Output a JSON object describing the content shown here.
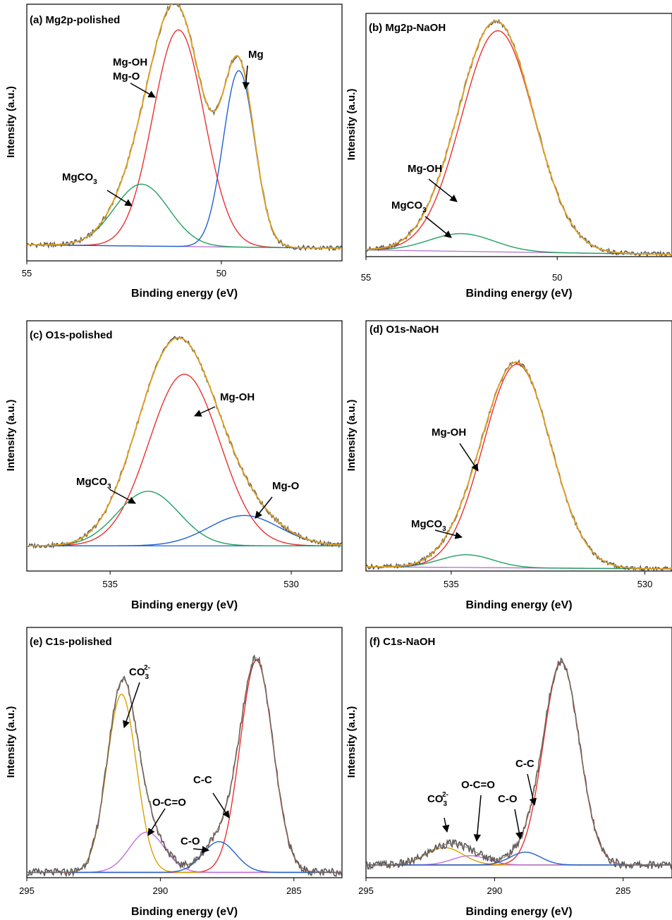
{
  "figure": {
    "panels": [
      {
        "id": "a",
        "title": "(a) Mg2p-polished",
        "xlabel": "Binding energy (eV)",
        "ylabel": "Intensity (a.u.)"
      },
      {
        "id": "b",
        "title": "(b) Mg2p-NaOH",
        "xlabel": "Binding energy (eV)",
        "ylabel": "Intensity (a.u.)"
      },
      {
        "id": "c",
        "title": "(c) O1s-polished",
        "xlabel": "Binding energy (eV)",
        "ylabel": "Intensity (a.u.)"
      },
      {
        "id": "d",
        "title": "(d) O1s-NaOH",
        "xlabel": "Binding energy (eV)",
        "ylabel": "Intensity (a.u.)"
      },
      {
        "id": "e",
        "title": "(e) C1s-polished",
        "xlabel": "Binding energy (eV)",
        "ylabel": "Intensity (a.u.)"
      },
      {
        "id": "f",
        "title": "(f) C1s-NaOH",
        "xlabel": "Binding energy (eV)",
        "ylabel": "Intensity (a.u.)"
      }
    ]
  },
  "colors": {
    "raw": "#5a5a5a",
    "envelope": "#e0a020",
    "background": "#b070d0",
    "red": "#e83030",
    "green": "#20a060",
    "blue": "#2060d0",
    "orange": "#d8a000",
    "purple": "#c070e0",
    "carbonate_c1s": "#d8a000"
  },
  "chart_data": [
    {
      "panel": "a",
      "type": "line",
      "title": "(a) Mg2p-polished",
      "xlabel": "Binding energy (eV)",
      "ylabel": "Intensity (a.u.)",
      "xlim": [
        55,
        46.9
      ],
      "x_reversed": true,
      "xticks": [
        55,
        50
      ],
      "ylim": [
        0,
        1.12
      ],
      "yticks_shown": false,
      "baseline": [
        0.07,
        0.055
      ],
      "baseline_color": "background",
      "components": [
        {
          "label": "Mg-OH / Mg-O",
          "center": 51.1,
          "fwhm": 1.55,
          "height": 0.945,
          "color": "red"
        },
        {
          "label": "MgCO3",
          "center": 52.05,
          "fwhm": 1.65,
          "height": 0.27,
          "color": "green"
        },
        {
          "label": "Mg",
          "center": 49.55,
          "fwhm": 0.95,
          "height": 0.77,
          "color": "blue"
        }
      ],
      "annotations": [
        {
          "lines": [
            "Mg-OH",
            "Mg-O"
          ],
          "point_to": "Mg-OH / Mg-O"
        },
        {
          "lines": [
            "Mg"
          ],
          "point_to": "Mg"
        },
        {
          "lines": [
            "MgCO",
            "3"
          ],
          "point_to": "MgCO3"
        }
      ]
    },
    {
      "panel": "b",
      "type": "line",
      "title": "(b) Mg2p-NaOH",
      "xlabel": "Binding energy (eV)",
      "ylabel": "Intensity (a.u.)",
      "xlim": [
        55,
        47
      ],
      "x_reversed": true,
      "xticks": [
        55,
        50
      ],
      "ylim": [
        0,
        1.1
      ],
      "yticks_shown": false,
      "baseline": [
        0.03,
        0.01
      ],
      "baseline_color": "background",
      "components": [
        {
          "label": "Mg-OH",
          "center": 51.55,
          "fwhm": 2.25,
          "height": 1.0,
          "color": "red"
        },
        {
          "label": "MgCO3",
          "center": 52.5,
          "fwhm": 2.0,
          "height": 0.08,
          "color": "green"
        }
      ],
      "annotations": [
        {
          "lines": [
            "Mg-OH"
          ],
          "point_to": "Mg-OH"
        },
        {
          "lines": [
            "MgCO",
            "3"
          ],
          "point_to": "MgCO3"
        }
      ]
    },
    {
      "panel": "c",
      "type": "line",
      "title": "(c) O1s-polished",
      "xlabel": "Binding energy (eV)",
      "ylabel": "Intensity (a.u.)",
      "xlim": [
        537.3,
        528.6
      ],
      "x_reversed": true,
      "xticks": [
        535,
        530
      ],
      "ylim": [
        -0.12,
        1.12
      ],
      "yticks_shown": false,
      "baseline": [
        0.005,
        0.005
      ],
      "baseline_color": "blue",
      "components": [
        {
          "label": "Mg-OH",
          "center": 532.95,
          "fwhm": 2.3,
          "height": 0.85,
          "color": "red"
        },
        {
          "label": "MgCO3",
          "center": 533.95,
          "fwhm": 2.0,
          "height": 0.27,
          "color": "green"
        },
        {
          "label": "Mg-O",
          "center": 531.3,
          "fwhm": 2.3,
          "height": 0.15,
          "color": "blue"
        }
      ],
      "annotations": [
        {
          "lines": [
            "Mg-OH"
          ],
          "point_to": "Mg-OH"
        },
        {
          "lines": [
            "MgCO",
            "3"
          ],
          "point_to": "MgCO3"
        },
        {
          "lines": [
            "Mg-O"
          ],
          "point_to": "Mg-O"
        }
      ]
    },
    {
      "panel": "d",
      "type": "line",
      "title": "(d) O1s-NaOH",
      "xlabel": "Binding energy (eV)",
      "ylabel": "Intensity (a.u.)",
      "xlim": [
        537.2,
        529.3
      ],
      "x_reversed": true,
      "xticks": [
        535,
        530
      ],
      "ylim": [
        0,
        1.18
      ],
      "yticks_shown": false,
      "baseline": [
        0.02,
        0.01
      ],
      "baseline_color": "background",
      "components": [
        {
          "label": "Mg-OH",
          "center": 533.3,
          "fwhm": 2.05,
          "height": 0.96,
          "color": "red"
        },
        {
          "label": "MgCO3",
          "center": 534.6,
          "fwhm": 1.6,
          "height": 0.06,
          "color": "green"
        }
      ],
      "annotations": [
        {
          "lines": [
            "Mg-OH"
          ],
          "point_to": "Mg-OH"
        },
        {
          "lines": [
            "MgCO",
            "3"
          ],
          "point_to": "MgCO3"
        }
      ]
    },
    {
      "panel": "e",
      "type": "line",
      "title": "(e) C1s-polished",
      "xlabel": "Binding energy (eV)",
      "ylabel": "Intensity (a.u.)",
      "xlim": [
        295,
        283.2
      ],
      "x_reversed": true,
      "xticks": [
        295,
        290,
        285
      ],
      "ylim": [
        0,
        1.18
      ],
      "yticks_shown": false,
      "baseline": [
        0.025,
        0.025
      ],
      "baseline_color": "blue",
      "components": [
        {
          "label": "C-C",
          "center": 286.4,
          "fwhm": 1.45,
          "height": 1.0,
          "color": "red"
        },
        {
          "label": "CO3 2-",
          "center": 291.45,
          "fwhm": 1.3,
          "height": 0.84,
          "color": "orange"
        },
        {
          "label": "O-C=O",
          "center": 290.5,
          "fwhm": 1.55,
          "height": 0.19,
          "color": "purple"
        },
        {
          "label": "C-O",
          "center": 287.8,
          "fwhm": 1.45,
          "height": 0.145,
          "color": "blue"
        }
      ],
      "annotations": [
        {
          "lines": [
            "CO",
            "3",
            "2-"
          ],
          "point_to": "CO3 2-"
        },
        {
          "lines": [
            "O-C=O"
          ],
          "point_to": "O-C=O"
        },
        {
          "lines": [
            "C-O"
          ],
          "point_to": "C-O"
        },
        {
          "lines": [
            "C-C"
          ],
          "point_to": "C-C"
        }
      ]
    },
    {
      "panel": "f",
      "type": "line",
      "title": "(f) C1s-NaOH",
      "xlabel": "Binding energy (eV)",
      "ylabel": "Intensity (a.u.)",
      "xlim": [
        295,
        283.1
      ],
      "x_reversed": true,
      "xticks": [
        295,
        290,
        285
      ],
      "ylim": [
        0,
        1.08
      ],
      "yticks_shown": false,
      "baseline": [
        0.055,
        0.055
      ],
      "baseline_color": "green",
      "components": [
        {
          "label": "C-C",
          "center": 287.4,
          "fwhm": 1.65,
          "height": 0.875,
          "color": "red"
        },
        {
          "label": "CO3 2-",
          "center": 291.95,
          "fwhm": 1.7,
          "height": 0.075,
          "color": "orange"
        },
        {
          "label": "O-C=O",
          "center": 290.95,
          "fwhm": 1.6,
          "height": 0.04,
          "color": "purple"
        },
        {
          "label": "C-O",
          "center": 288.8,
          "fwhm": 1.4,
          "height": 0.055,
          "color": "blue"
        }
      ],
      "annotations": [
        {
          "lines": [
            "CO",
            "3",
            "2-"
          ],
          "point_to": "CO3 2-"
        },
        {
          "lines": [
            "O-C=O"
          ],
          "point_to": "O-C=O"
        },
        {
          "lines": [
            "C-O"
          ],
          "point_to": "C-O"
        },
        {
          "lines": [
            "C-C"
          ],
          "point_to": "C-C"
        }
      ]
    }
  ]
}
